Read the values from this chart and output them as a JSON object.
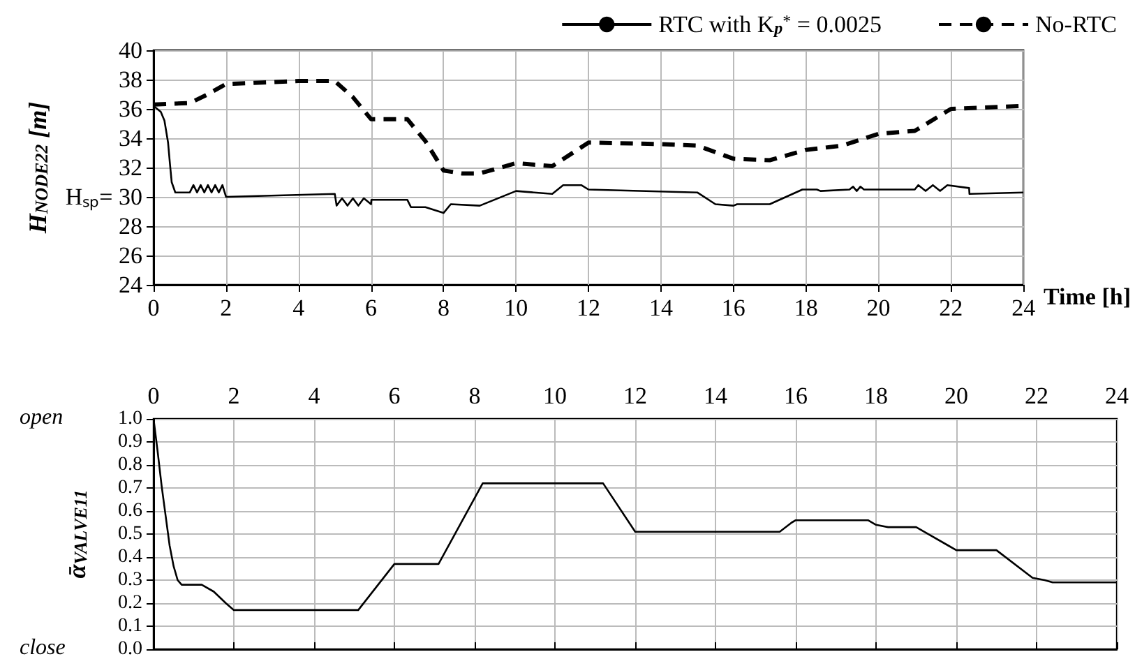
{
  "chart_data": [
    {
      "type": "line",
      "xlabel": "Time [h]",
      "ylabel": "H$_{NODE22}$ [m]",
      "xlim": [
        0,
        24
      ],
      "xticks": [
        0,
        2,
        4,
        6,
        8,
        10,
        12,
        14,
        16,
        18,
        20,
        22,
        24
      ],
      "ylim": [
        24,
        40
      ],
      "yticks": [
        24,
        26,
        28,
        {
          "value": 30,
          "label": "Hₛₚ= 30"
        },
        32,
        34,
        36,
        38,
        40
      ],
      "grid": true,
      "legend": "top right",
      "marker": "none",
      "series": [
        {
          "name": "RTC with K$_{p}$$^{*}$ = 0.0025",
          "color": "#000000",
          "line_style": "solid",
          "x": [
            0,
            0.2,
            0.3,
            0.4,
            0.45,
            0.5,
            0.6,
            1,
            1.1,
            1.2,
            1.3,
            1.4,
            1.5,
            1.6,
            1.7,
            1.8,
            1.9,
            2,
            5,
            5.05,
            5.2,
            5.35,
            5.5,
            5.65,
            5.8,
            6,
            6.01,
            7,
            7.1,
            7.5,
            8,
            8.2,
            9,
            10,
            11,
            11.3,
            11.8,
            12,
            15,
            15.5,
            16,
            16.1,
            17,
            17.9,
            18.3,
            18.4,
            19.2,
            19.3,
            19.4,
            19.5,
            19.6,
            21,
            21.1,
            21.3,
            21.5,
            21.7,
            21.9,
            22.5,
            22.51,
            24
          ],
          "values": [
            36.2,
            35.8,
            35.2,
            33.7,
            32.3,
            31,
            30.3,
            30.3,
            30.8,
            30.3,
            30.8,
            30.3,
            30.8,
            30.3,
            30.8,
            30.3,
            30.8,
            30.0,
            30.2,
            29.4,
            29.9,
            29.4,
            29.9,
            29.4,
            29.9,
            29.5,
            29.8,
            29.8,
            29.3,
            29.3,
            28.9,
            29.5,
            29.4,
            30.4,
            30.2,
            30.8,
            30.8,
            30.5,
            30.3,
            29.5,
            29.4,
            29.5,
            29.5,
            30.5,
            30.5,
            30.4,
            30.5,
            30.7,
            30.4,
            30.7,
            30.5,
            30.5,
            30.8,
            30.4,
            30.8,
            30.4,
            30.8,
            30.6,
            30.2,
            30.3
          ]
        },
        {
          "name": "No-RTC",
          "color": "#000000",
          "line_style": "dashed",
          "x": [
            0,
            1,
            1.5,
            2,
            3,
            4,
            5,
            5.5,
            6,
            7,
            7.5,
            8,
            8.5,
            9,
            10,
            11,
            12,
            14,
            15,
            16,
            17,
            18,
            19,
            20,
            21,
            22,
            24
          ],
          "values": [
            36.3,
            36.4,
            37,
            37.7,
            37.8,
            37.9,
            37.9,
            36.8,
            35.3,
            35.3,
            33.8,
            31.8,
            31.6,
            31.6,
            32.3,
            32.1,
            33.7,
            33.6,
            33.5,
            32.6,
            32.5,
            33.2,
            33.5,
            34.3,
            34.5,
            36.0,
            36.2
          ]
        }
      ]
    },
    {
      "type": "line",
      "ylabel": "ᾱ$_{VALVE11}$",
      "xlim": [
        0,
        24
      ],
      "xticks": [
        0,
        2,
        4,
        6,
        8,
        10,
        12,
        14,
        16,
        18,
        20,
        22,
        24
      ],
      "ylim": [
        0,
        1
      ],
      "yticks": [
        {
          "value": 0,
          "label": "0.0"
        },
        0.1,
        0.2,
        0.3,
        0.4,
        0.5,
        0.6,
        0.7,
        0.8,
        0.9,
        {
          "value": 1,
          "label": "1.0"
        }
      ],
      "grid": true,
      "marker": "none",
      "annotations": [
        "open",
        "close"
      ],
      "series": [
        {
          "color": "#000000",
          "line_style": "solid",
          "x": [
            0,
            0.1,
            0.2,
            0.3,
            0.4,
            0.5,
            0.6,
            0.7,
            1.2,
            1.5,
            1.8,
            2,
            5.1,
            6,
            7.1,
            8.2,
            11.2,
            12,
            15.6,
            15.9,
            16,
            17.8,
            18,
            18.3,
            19,
            19.8,
            20,
            21,
            21.9,
            22.2,
            22.4,
            24
          ],
          "values": [
            1.0,
            0.86,
            0.71,
            0.58,
            0.45,
            0.36,
            0.3,
            0.28,
            0.28,
            0.25,
            0.2,
            0.17,
            0.17,
            0.37,
            0.37,
            0.72,
            0.72,
            0.51,
            0.51,
            0.55,
            0.56,
            0.56,
            0.54,
            0.53,
            0.53,
            0.45,
            0.43,
            0.43,
            0.31,
            0.3,
            0.29,
            0.29
          ]
        }
      ]
    }
  ]
}
